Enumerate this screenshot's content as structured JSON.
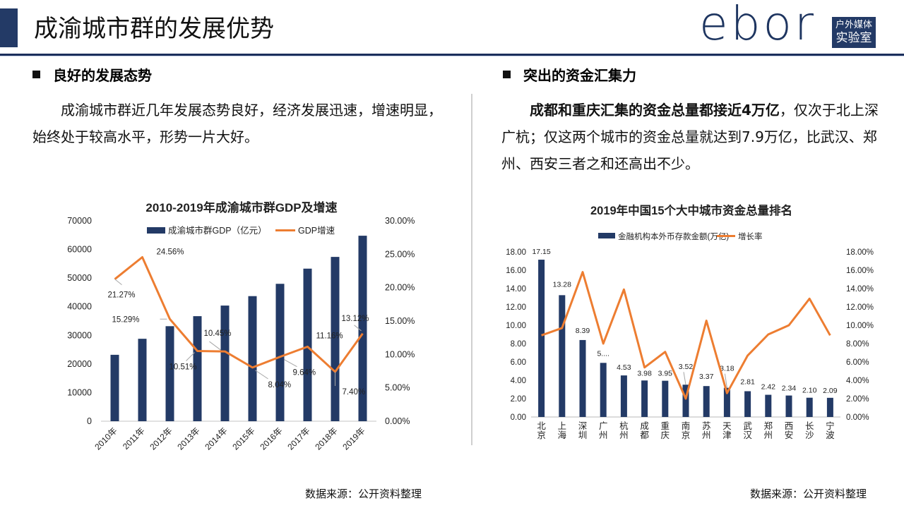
{
  "header": {
    "title": "成渝城市群的发展优势",
    "logo_text": "ebor",
    "logo_box_line1": "户外媒体",
    "logo_box_line2": "实验室"
  },
  "left": {
    "heading": "良好的发展态势",
    "paragraph": "成渝城市群近几年发展态势良好，经济发展迅速，增速明显，始终处于较高水平，形势一片大好。",
    "source": "数据来源：公开资料整理"
  },
  "right": {
    "heading": "突出的资金汇集力",
    "paragraph_bold": "成都和重庆汇集的资金总量都接近4万亿",
    "paragraph_rest": "，仅次于北上深广杭；仅这两个城市的资金总量就达到7.9万亿，比武汉、郑州、西安三者之和还高出不少。",
    "source": "数据来源：公开资料整理"
  },
  "colors": {
    "bar": "#233a66",
    "line": "#ed7d31",
    "accent": "#1b2f5c",
    "leader": "#a6a6a6"
  },
  "chart_data": [
    {
      "type": "bar+line",
      "title": "2010-2019年成渝城市群GDP及增速",
      "categories": [
        "2010年",
        "2011年",
        "2012年",
        "2013年",
        "2014年",
        "2015年",
        "2016年",
        "2017年",
        "2018年",
        "2019年"
      ],
      "series": [
        {
          "name": "成渝城市群GDP（亿元）",
          "type": "bar",
          "axis": "left",
          "values": [
            23200,
            28800,
            33200,
            36700,
            40400,
            43700,
            48000,
            53300,
            57400,
            64800
          ]
        },
        {
          "name": "GDP增速",
          "type": "line",
          "axis": "right",
          "values": [
            21.27,
            24.56,
            15.29,
            10.51,
            10.45,
            8.04,
            9.64,
            11.16,
            7.4,
            13.12
          ],
          "labels": [
            "21.27%",
            "24.56%",
            "15.29%",
            "10.51%",
            "10.45%",
            "8.04%",
            "9.64%",
            "11.16%",
            "7.40%",
            "13.12%"
          ]
        }
      ],
      "y_left": {
        "min": 0,
        "max": 70000,
        "ticks": [
          "0",
          "10000",
          "20000",
          "30000",
          "40000",
          "50000",
          "60000",
          "70000"
        ]
      },
      "y_right": {
        "min": 0,
        "max": 30,
        "ticks": [
          "0.00%",
          "5.00%",
          "10.00%",
          "15.00%",
          "20.00%",
          "25.00%",
          "30.00%"
        ]
      },
      "legend": "top-center",
      "grid": false
    },
    {
      "type": "bar+line",
      "title": "2019年中国15个大中城市资金总量排名",
      "categories": [
        "北京",
        "上海",
        "深圳",
        "广州",
        "杭州",
        "成都",
        "重庆",
        "南京",
        "苏州",
        "天津",
        "武汉",
        "郑州",
        "西安",
        "长沙",
        "宁波"
      ],
      "series": [
        {
          "name": "金融机构本外币存款金额(万亿)",
          "type": "bar",
          "axis": "left",
          "values": [
            17.15,
            13.28,
            8.39,
            5.9,
            4.53,
            3.98,
            3.95,
            3.52,
            3.37,
            3.18,
            2.81,
            2.42,
            2.34,
            2.1,
            2.09
          ],
          "labels": [
            "17.15",
            "13.28",
            "8.39",
            "5....",
            "4.53",
            "3.98",
            "3.95",
            "3.52",
            "3.37",
            "3.18",
            "2.81",
            "2.42",
            "2.34",
            "2.10",
            "2.09"
          ]
        },
        {
          "name": "增长率",
          "type": "line",
          "axis": "right",
          "values": [
            8.9,
            9.7,
            15.8,
            8.0,
            13.9,
            5.4,
            7.1,
            2.0,
            10.5,
            2.6,
            6.7,
            9.0,
            10.0,
            12.9,
            8.9
          ]
        }
      ],
      "y_left": {
        "min": 0,
        "max": 18,
        "ticks": [
          "0.00",
          "2.00",
          "4.00",
          "6.00",
          "8.00",
          "10.00",
          "12.00",
          "14.00",
          "16.00",
          "18.00"
        ]
      },
      "y_right": {
        "min": 0,
        "max": 18,
        "ticks": [
          "0.00%",
          "2.00%",
          "4.00%",
          "6.00%",
          "8.00%",
          "10.00%",
          "12.00%",
          "14.00%",
          "16.00%",
          "18.00%"
        ]
      },
      "legend": "top-center",
      "grid": false
    }
  ]
}
